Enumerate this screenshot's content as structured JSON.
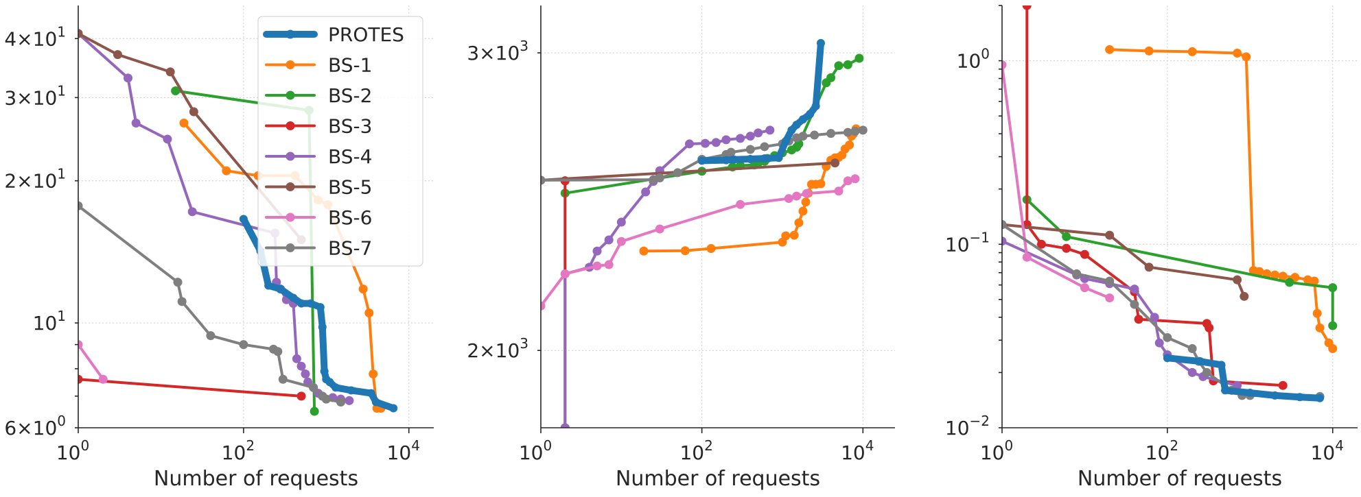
{
  "chart_data": [
    {
      "type": "line",
      "title": "",
      "xlabel": "Number of requests",
      "ylabel": "",
      "xscale": "log",
      "yscale": "log",
      "xlim": [
        1,
        20000
      ],
      "ylim": [
        6,
        47
      ],
      "grid": true,
      "legend": "top-right",
      "xticks": [
        {
          "v": 1,
          "base": "10",
          "exp": "0"
        },
        {
          "v": 100,
          "base": "10",
          "exp": "2"
        },
        {
          "v": 10000,
          "base": "10",
          "exp": "4"
        }
      ],
      "yticks": [
        {
          "v": 6,
          "mant": "6",
          "base": "10",
          "exp": "0"
        },
        {
          "v": 10,
          "mant": "",
          "base": "10",
          "exp": "1"
        },
        {
          "v": 20,
          "mant": "2",
          "base": "10",
          "exp": "1"
        },
        {
          "v": 30,
          "mant": "3",
          "base": "10",
          "exp": "1"
        },
        {
          "v": 40,
          "mant": "4",
          "base": "10",
          "exp": "1"
        }
      ],
      "series": [
        {
          "name": "BS-1",
          "color": "#ff7f0e",
          "x": [
            19,
            62,
            150,
            420,
            800,
            1050,
            2800,
            3300,
            3700,
            4100,
            4600
          ],
          "y": [
            26.5,
            21,
            20.5,
            20.5,
            18.2,
            17.8,
            11.8,
            10.5,
            7.8,
            6.6,
            6.6
          ]
        },
        {
          "name": "BS-2",
          "color": "#2ca02c",
          "x": [
            15,
            620,
            720
          ],
          "y": [
            31,
            28.2,
            6.5
          ]
        },
        {
          "name": "BS-3",
          "color": "#d62728",
          "x": [
            1,
            500
          ],
          "y": [
            7.6,
            7.0
          ]
        },
        {
          "name": "BS-4",
          "color": "#9467bd",
          "x": [
            1,
            4,
            5,
            12,
            24,
            240,
            250,
            280,
            330,
            400,
            440,
            500,
            560,
            600,
            700,
            800,
            900,
            1000,
            1200,
            1500,
            1900
          ],
          "y": [
            41,
            33,
            26.5,
            24.5,
            17.2,
            15.5,
            12.2,
            11.8,
            11.2,
            11.0,
            8.4,
            8.1,
            7.8,
            7.5,
            7.3,
            7.1,
            7.0,
            6.9,
            6.95,
            6.9,
            6.85
          ]
        },
        {
          "name": "BS-5",
          "color": "#8c564b",
          "x": [
            1,
            3,
            13,
            25,
            500
          ],
          "y": [
            41,
            37,
            34,
            28,
            15
          ]
        },
        {
          "name": "BS-6",
          "color": "#e377c2",
          "x": [
            1,
            2
          ],
          "y": [
            9.0,
            7.6
          ]
        },
        {
          "name": "BS-7",
          "color": "#7f7f7f",
          "x": [
            1,
            16,
            18,
            40,
            100,
            230,
            260,
            300,
            700,
            900,
            1000,
            1500
          ],
          "y": [
            17.7,
            12.2,
            11.1,
            9.4,
            9.0,
            8.8,
            8.7,
            7.6,
            7.3,
            7.0,
            6.9,
            6.8
          ]
        },
        {
          "name": "PROTES",
          "color": "#1f77b4",
          "x": [
            100,
            160,
            200,
            280,
            400,
            500,
            650,
            850,
            900,
            950,
            1000,
            1100,
            1300,
            2000,
            3500,
            4000,
            6500
          ],
          "y": [
            16.6,
            14.2,
            12.0,
            11.8,
            11.3,
            11.0,
            11.0,
            10.8,
            9.8,
            7.9,
            7.6,
            7.5,
            7.3,
            7.2,
            7.1,
            6.8,
            6.6
          ]
        }
      ]
    },
    {
      "type": "line",
      "title": "",
      "xlabel": "Number of requests",
      "ylabel": "",
      "xscale": "log",
      "yscale": "log",
      "xlim": [
        1,
        25000
      ],
      "ylim": [
        1800,
        3200
      ],
      "grid": true,
      "xticks": [
        {
          "v": 1,
          "base": "10",
          "exp": "0"
        },
        {
          "v": 100,
          "base": "10",
          "exp": "2"
        },
        {
          "v": 10000,
          "base": "10",
          "exp": "4"
        }
      ],
      "yticks": [
        {
          "v": 2000,
          "mant": "2",
          "base": "10",
          "exp": "3"
        },
        {
          "v": 3000,
          "mant": "3",
          "base": "10",
          "exp": "3"
        }
      ],
      "series": [
        {
          "name": "BS-1",
          "color": "#ff7f0e",
          "x": [
            19,
            62,
            130,
            1000,
            1100,
            1400,
            1600,
            1800,
            1950,
            2100,
            2300,
            2600,
            3000,
            3500,
            4000,
            4500,
            5000,
            5500,
            6000,
            6800,
            7200,
            7600,
            8200
          ],
          "y": [
            2290,
            2291,
            2298,
            2318,
            2338,
            2340,
            2380,
            2418,
            2448,
            2478,
            2508,
            2508,
            2510,
            2570,
            2592,
            2600,
            2602,
            2610,
            2632,
            2646,
            2678,
            2686,
            2705
          ]
        },
        {
          "name": "BS-2",
          "color": "#2ca02c",
          "x": [
            2,
            100,
            240,
            300,
            450,
            500,
            600,
            650,
            800,
            1000,
            1300,
            1500,
            1600,
            3500,
            4000,
            5000,
            6500,
            9000
          ],
          "y": [
            2478,
            2553,
            2568,
            2573,
            2575,
            2582,
            2588,
            2598,
            2608,
            2618,
            2628,
            2638,
            2650,
            2880,
            2900,
            2948,
            2952,
            2978
          ]
        },
        {
          "name": "BS-3",
          "color": "#d62728",
          "x": [
            2,
            2,
            2
          ],
          "y": [
            1800,
            2520,
            2520
          ]
        },
        {
          "name": "BS-4",
          "color": "#9467bd",
          "x": [
            2,
            2,
            4,
            5,
            7,
            10,
            20,
            25,
            30,
            70,
            110,
            150,
            200,
            300,
            400,
            500,
            700
          ],
          "y": [
            1800,
            2220,
            2240,
            2290,
            2325,
            2382,
            2482,
            2518,
            2555,
            2650,
            2652,
            2655,
            2665,
            2670,
            2678,
            2690,
            2700
          ]
        },
        {
          "name": "BS-5",
          "color": "#8c564b",
          "x": [
            1,
            4500
          ],
          "y": [
            2522,
            2582
          ]
        },
        {
          "name": "BS-6",
          "color": "#e377c2",
          "x": [
            1,
            2,
            5,
            7,
            10,
            30,
            300,
            1200,
            1500,
            2000,
            5000,
            6500,
            8000
          ],
          "y": [
            2125,
            2220,
            2244,
            2248,
            2320,
            2360,
            2440,
            2460,
            2468,
            2477,
            2485,
            2520,
            2527
          ]
        },
        {
          "name": "BS-7",
          "color": "#7f7f7f",
          "x": [
            1,
            25,
            30,
            50,
            100,
            200,
            230,
            400,
            600,
            1000,
            1200,
            1500,
            1800,
            2500,
            4000,
            6500,
            8000,
            10000
          ],
          "y": [
            2522,
            2524,
            2530,
            2548,
            2595,
            2612,
            2620,
            2630,
            2640,
            2650,
            2660,
            2672,
            2678,
            2682,
            2688,
            2692,
            2696,
            2700
          ]
        },
        {
          "name": "PROTES",
          "color": "#1f77b4",
          "x": [
            100,
            200,
            250,
            400,
            600,
            900,
            1100,
            1300,
            1500,
            1800,
            2200,
            2600,
            3000
          ],
          "y": [
            2590,
            2592,
            2594,
            2596,
            2598,
            2600,
            2660,
            2700,
            2720,
            2740,
            2760,
            2790,
            3040
          ]
        }
      ]
    },
    {
      "type": "line",
      "title": "",
      "xlabel": "Number of requests",
      "ylabel": "",
      "xscale": "log",
      "yscale": "log",
      "xlim": [
        1,
        20000
      ],
      "ylim": [
        0.01,
        2
      ],
      "grid": true,
      "xticks": [
        {
          "v": 1,
          "base": "10",
          "exp": "0"
        },
        {
          "v": 100,
          "base": "10",
          "exp": "2"
        },
        {
          "v": 10000,
          "base": "10",
          "exp": "4"
        }
      ],
      "yticks": [
        {
          "v": 0.01,
          "mant": "",
          "base": "10",
          "exp": "−2"
        },
        {
          "v": 0.1,
          "mant": "",
          "base": "10",
          "exp": "−1"
        },
        {
          "v": 1,
          "mant": "",
          "base": "10",
          "exp": "0"
        }
      ],
      "series": [
        {
          "name": "BS-1",
          "color": "#ff7f0e",
          "x": [
            20,
            60,
            200,
            700,
            900,
            1100,
            1300,
            1600,
            2000,
            2500,
            3500,
            5000,
            6000,
            6500,
            7000,
            9000,
            10000
          ],
          "y": [
            1.15,
            1.13,
            1.12,
            1.1,
            1.05,
            0.072,
            0.071,
            0.069,
            0.068,
            0.067,
            0.066,
            0.064,
            0.063,
            0.042,
            0.035,
            0.029,
            0.027
          ]
        },
        {
          "name": "BS-2",
          "color": "#2ca02c",
          "x": [
            2,
            6,
            3000,
            10000,
            10000
          ],
          "y": [
            0.175,
            0.11,
            0.062,
            0.058,
            0.036
          ]
        },
        {
          "name": "BS-3",
          "color": "#d62728",
          "x": [
            2,
            2,
            3,
            6,
            10,
            40,
            45,
            300,
            320,
            360,
            2500
          ],
          "y": [
            2,
            0.128,
            0.1,
            0.095,
            0.088,
            0.055,
            0.039,
            0.037,
            0.035,
            0.018,
            0.017
          ]
        },
        {
          "name": "BS-4",
          "color": "#9467bd",
          "x": [
            1,
            8,
            10,
            20,
            40,
            70,
            80,
            100,
            200,
            270,
            700
          ],
          "y": [
            0.104,
            0.068,
            0.065,
            0.061,
            0.057,
            0.04,
            0.029,
            0.025,
            0.02,
            0.019,
            0.017
          ]
        },
        {
          "name": "BS-5",
          "color": "#8c564b",
          "x": [
            1,
            20,
            60,
            700,
            850
          ],
          "y": [
            0.128,
            0.112,
            0.075,
            0.064,
            0.052
          ]
        },
        {
          "name": "BS-6",
          "color": "#e377c2",
          "x": [
            1,
            2,
            10,
            20
          ],
          "y": [
            0.95,
            0.085,
            0.058,
            0.051
          ]
        },
        {
          "name": "BS-7",
          "color": "#7f7f7f",
          "x": [
            1,
            8,
            20,
            40,
            100,
            200,
            240,
            300,
            600,
            800,
            1000,
            7000
          ],
          "y": [
            0.128,
            0.069,
            0.063,
            0.047,
            0.031,
            0.027,
            0.023,
            0.02,
            0.016,
            0.015,
            0.015,
            0.0148
          ]
        },
        {
          "name": "PROTES",
          "color": "#1f77b4",
          "x": [
            100,
            250,
            450,
            500,
            1000,
            2000,
            4000,
            7000
          ],
          "y": [
            0.024,
            0.023,
            0.022,
            0.016,
            0.0155,
            0.015,
            0.0147,
            0.0145
          ]
        }
      ]
    }
  ],
  "legend": {
    "entries": [
      {
        "label": "PROTES",
        "color": "#1f77b4",
        "thick": true
      },
      {
        "label": "BS-1",
        "color": "#ff7f0e"
      },
      {
        "label": "BS-2",
        "color": "#2ca02c"
      },
      {
        "label": "BS-3",
        "color": "#d62728"
      },
      {
        "label": "BS-4",
        "color": "#9467bd"
      },
      {
        "label": "BS-5",
        "color": "#8c564b"
      },
      {
        "label": "BS-6",
        "color": "#e377c2"
      },
      {
        "label": "BS-7",
        "color": "#7f7f7f"
      }
    ]
  }
}
